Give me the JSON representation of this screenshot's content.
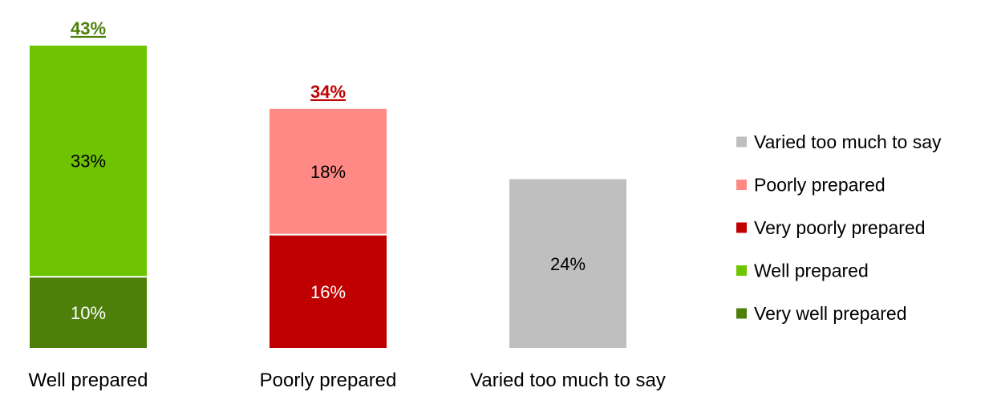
{
  "chart_data": {
    "type": "bar",
    "stacked": true,
    "categories": [
      "Well prepared",
      "Poorly prepared",
      "Varied too much to say"
    ],
    "ylim": [
      0,
      45
    ],
    "grid": false,
    "legend_position": "right",
    "series": [
      {
        "name": "Very well prepared",
        "color": "#4D7F0A",
        "values": [
          10,
          null,
          null
        ],
        "labels": [
          "10%",
          "",
          ""
        ]
      },
      {
        "name": "Well prepared",
        "color": "#6EC400",
        "values": [
          33,
          null,
          null
        ],
        "labels": [
          "33%",
          "",
          ""
        ]
      },
      {
        "name": "Very poorly prepared",
        "color": "#C00000",
        "values": [
          null,
          16,
          null
        ],
        "labels": [
          "",
          "16%",
          ""
        ]
      },
      {
        "name": "Poorly prepared",
        "color": "#FF8A85",
        "values": [
          null,
          18,
          null
        ],
        "labels": [
          "",
          "18%",
          ""
        ]
      },
      {
        "name": "Varied too much to say",
        "color": "#BFBFBF",
        "values": [
          null,
          null,
          24
        ],
        "labels": [
          "",
          "",
          "24%"
        ]
      }
    ],
    "totals": [
      {
        "category": "Well prepared",
        "value": 43,
        "label": "43%",
        "color": "#4D7F0A"
      },
      {
        "category": "Poorly prepared",
        "value": 34,
        "label": "34%",
        "color": "#C00000"
      }
    ],
    "legend_order": [
      "Varied too much to say",
      "Poorly prepared",
      "Very poorly prepared",
      "Well prepared",
      "Very well prepared"
    ]
  }
}
